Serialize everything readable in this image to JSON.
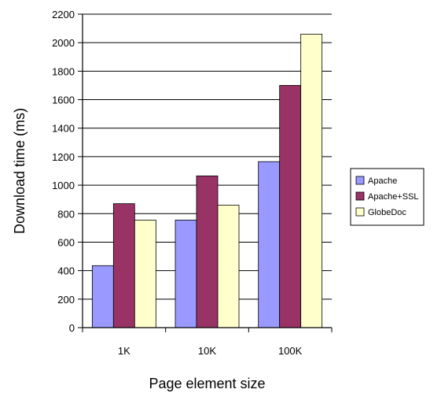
{
  "chart_data": {
    "type": "bar",
    "title": "",
    "xlabel": "Page element size",
    "ylabel": "Download time (ms)",
    "categories": [
      "1K",
      "10K",
      "100K"
    ],
    "series": [
      {
        "name": "Apache",
        "values": [
          435,
          755,
          1165
        ],
        "color": "#9999ff"
      },
      {
        "name": "Apache+SSL",
        "values": [
          870,
          1065,
          1700
        ],
        "color": "#993366"
      },
      {
        "name": "GlobeDoc",
        "values": [
          755,
          860,
          2060
        ],
        "color": "#ffffcc"
      }
    ],
    "ylim": [
      0,
      2200
    ],
    "yticks": [
      0,
      200,
      400,
      600,
      800,
      1000,
      1200,
      1400,
      1600,
      1800,
      2000,
      2200
    ],
    "grid": true,
    "legend_position": "right"
  }
}
